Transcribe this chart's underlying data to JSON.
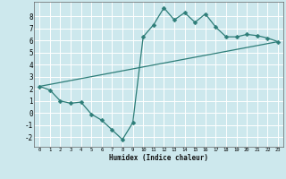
{
  "xlabel": "Humidex (Indice chaleur)",
  "background_color": "#cde8ed",
  "grid_color": "#ffffff",
  "line_color": "#2d7d78",
  "xlim": [
    -0.5,
    23.5
  ],
  "ylim": [
    -2.8,
    9.2
  ],
  "xticks": [
    0,
    1,
    2,
    3,
    4,
    5,
    6,
    7,
    8,
    9,
    10,
    11,
    12,
    13,
    14,
    15,
    16,
    17,
    18,
    19,
    20,
    21,
    22,
    23
  ],
  "yticks": [
    -2,
    -1,
    0,
    1,
    2,
    3,
    4,
    5,
    6,
    7,
    8
  ],
  "line1_x": [
    0,
    1,
    2,
    3,
    4,
    5,
    6,
    7,
    8,
    9,
    10,
    11,
    12,
    13,
    14,
    15,
    16,
    17,
    18,
    19,
    20,
    21,
    22,
    23
  ],
  "line1_y": [
    2.2,
    1.9,
    1.0,
    0.8,
    0.9,
    -0.1,
    -0.6,
    -1.4,
    -2.2,
    -0.8,
    6.3,
    7.3,
    8.7,
    7.7,
    8.3,
    7.5,
    8.2,
    7.1,
    6.3,
    6.3,
    6.5,
    6.4,
    6.2,
    5.9
  ],
  "line2_x": [
    0,
    23
  ],
  "line2_y": [
    2.2,
    5.9
  ],
  "markersize": 2.5
}
